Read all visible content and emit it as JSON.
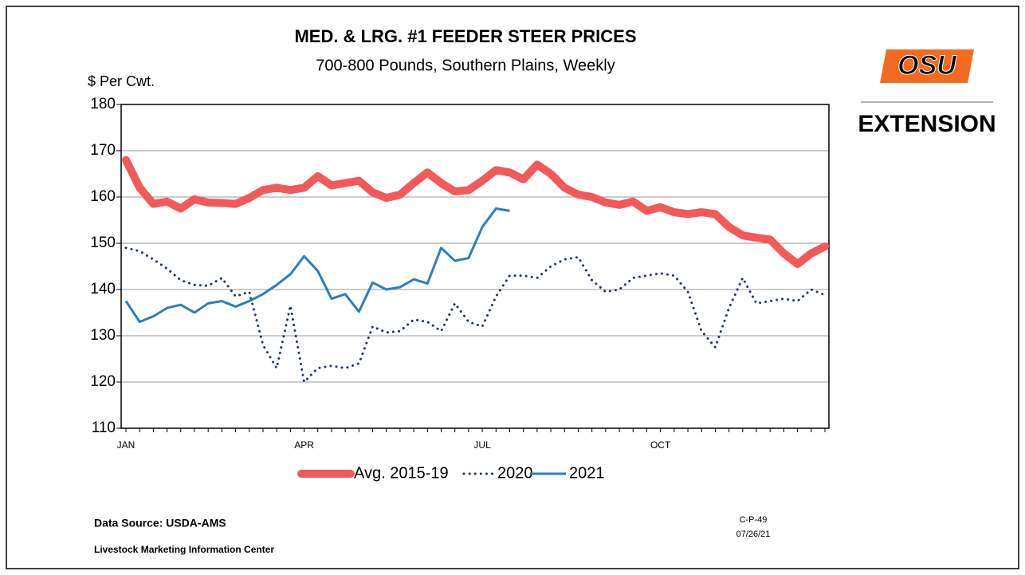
{
  "chart_data": {
    "type": "line",
    "title": "MED. & LRG. #1 FEEDER STEER PRICES",
    "subtitle": "700-800 Pounds, Southern Plains, Weekly",
    "y_label": "$ Per Cwt.",
    "categories": [
      "JAN",
      null,
      null,
      null,
      null,
      null,
      null,
      null,
      null,
      null,
      null,
      null,
      null,
      "APR",
      null,
      null,
      null,
      null,
      null,
      null,
      null,
      null,
      null,
      null,
      null,
      null,
      "JUL",
      null,
      null,
      null,
      null,
      null,
      null,
      null,
      null,
      null,
      null,
      null,
      null,
      "OCT",
      null,
      null,
      null,
      null,
      null,
      null,
      null,
      null,
      null,
      null,
      null,
      null
    ],
    "series": [
      {
        "name": "Avg. 2015-19",
        "color": "#f25a5a",
        "style": "solid-thick",
        "values": [
          168,
          162,
          158.5,
          159,
          157.5,
          159.5,
          158.8,
          158.7,
          158.5,
          159.8,
          161.5,
          162,
          161.5,
          162,
          164.5,
          162.5,
          163,
          163.5,
          161,
          159.8,
          160.5,
          163,
          165.3,
          163,
          161.2,
          161.5,
          163.5,
          165.8,
          165.3,
          163.8,
          167,
          165,
          162,
          160.5,
          160,
          158.8,
          158.3,
          159,
          157,
          157.8,
          156.7,
          156.3,
          156.7,
          156.3,
          153.5,
          151.7,
          151.2,
          150.8,
          147.8,
          145.5,
          147.8,
          149.3
        ]
      },
      {
        "name": "2020",
        "color": "#1f3864",
        "style": "dotted",
        "values": [
          149,
          148.3,
          146.5,
          144.5,
          142,
          141,
          140.8,
          142.5,
          138.5,
          139.5,
          128,
          123,
          136.5,
          120,
          123,
          123.5,
          123,
          124,
          132,
          130.7,
          131,
          133.5,
          133,
          131,
          137,
          133,
          132,
          138.5,
          143,
          143,
          142.5,
          145,
          146.5,
          147,
          142,
          139.5,
          140,
          142.5,
          143,
          143.5,
          143,
          139.5,
          131,
          127.5,
          136,
          142.5,
          137,
          137.5,
          138,
          137.5,
          140,
          138.8
        ]
      },
      {
        "name": "2021",
        "color": "#2a7fbf",
        "style": "solid",
        "values": [
          137.5,
          133,
          134.2,
          136,
          136.7,
          135,
          137,
          137.5,
          136.3,
          137.5,
          139,
          141,
          143.3,
          147.2,
          144,
          138,
          139,
          135.2,
          141.5,
          140,
          140.5,
          142.2,
          141.3,
          149,
          146.2,
          146.8,
          153.5,
          157.5,
          157,
          null,
          null,
          null,
          null,
          null,
          null,
          null,
          null,
          null,
          null,
          null,
          null,
          null,
          null,
          null,
          null,
          null,
          null,
          null,
          null,
          null,
          null,
          null
        ]
      }
    ],
    "ylim": [
      110,
      180
    ],
    "yticks": [
      110,
      120,
      130,
      140,
      150,
      160,
      170,
      180
    ],
    "grid": true,
    "legend": "bottom"
  },
  "logo": {
    "mark": "OSU",
    "text": "EXTENSION"
  },
  "footer": {
    "source": "Data Source:  USDA-AMS",
    "center": "Livestock Marketing Information Center",
    "code": "C-P-49",
    "date": "07/26/21"
  }
}
